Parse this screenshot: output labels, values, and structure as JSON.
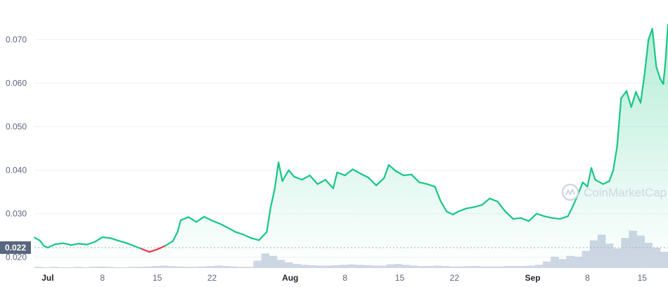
{
  "chart_data": {
    "type": "area",
    "source_watermark": "CoinMarketCap",
    "y_axis": {
      "ticks": [
        "0.020",
        "0.030",
        "0.040",
        "0.050",
        "0.060",
        "0.070"
      ],
      "tick_values": [
        0.02,
        0.03,
        0.04,
        0.05,
        0.06,
        0.07
      ],
      "ylim": [
        0.0175,
        0.0775
      ]
    },
    "x_axis": {
      "ticks": [
        {
          "label": "Jul",
          "day": 1,
          "bold": true
        },
        {
          "label": "8",
          "day": 8,
          "bold": false
        },
        {
          "label": "15",
          "day": 15,
          "bold": false
        },
        {
          "label": "22",
          "day": 22,
          "bold": false
        },
        {
          "label": "Aug",
          "day": 32,
          "bold": true
        },
        {
          "label": "8",
          "day": 39,
          "bold": false
        },
        {
          "label": "15",
          "day": 46,
          "bold": false
        },
        {
          "label": "22",
          "day": 53,
          "bold": false
        },
        {
          "label": "Sep",
          "day": 63,
          "bold": true
        },
        {
          "label": "8",
          "day": 70,
          "bold": false
        },
        {
          "label": "15",
          "day": 77,
          "bold": false
        }
      ],
      "xlim": [
        -0.7,
        80.3
      ]
    },
    "reference_line": {
      "value": 0.0222,
      "label": "0.022"
    },
    "price_series": {
      "name": "Price",
      "up_color": "#16c784",
      "down_color": "#ea3943",
      "points": [
        [
          -0.7,
          0.0245
        ],
        [
          0,
          0.0238
        ],
        [
          0.5,
          0.0226
        ],
        [
          1,
          0.0222
        ],
        [
          2,
          0.023
        ],
        [
          3,
          0.0232
        ],
        [
          4,
          0.0228
        ],
        [
          5,
          0.0231
        ],
        [
          6,
          0.0229
        ],
        [
          7,
          0.0235
        ],
        [
          8,
          0.0246
        ],
        [
          9,
          0.0244
        ],
        [
          10,
          0.0238
        ],
        [
          11,
          0.0233
        ],
        [
          12,
          0.0226
        ],
        [
          13,
          0.0219
        ],
        [
          14,
          0.0212
        ],
        [
          15,
          0.0218
        ],
        [
          16,
          0.0226
        ],
        [
          17,
          0.0237
        ],
        [
          17.6,
          0.0258
        ],
        [
          18,
          0.0285
        ],
        [
          19,
          0.0292
        ],
        [
          20,
          0.0281
        ],
        [
          21,
          0.0293
        ],
        [
          22,
          0.0284
        ],
        [
          23,
          0.0277
        ],
        [
          24,
          0.0268
        ],
        [
          25,
          0.0258
        ],
        [
          26,
          0.0252
        ],
        [
          27,
          0.0244
        ],
        [
          28,
          0.0239
        ],
        [
          29,
          0.0258
        ],
        [
          29.5,
          0.0315
        ],
        [
          30,
          0.0355
        ],
        [
          30.5,
          0.0418
        ],
        [
          31,
          0.0375
        ],
        [
          31.8,
          0.04
        ],
        [
          32.5,
          0.0385
        ],
        [
          33.5,
          0.0378
        ],
        [
          34.5,
          0.0388
        ],
        [
          35.5,
          0.0368
        ],
        [
          36.5,
          0.0378
        ],
        [
          37.5,
          0.0358
        ],
        [
          38,
          0.0395
        ],
        [
          39,
          0.0388
        ],
        [
          40,
          0.0402
        ],
        [
          41,
          0.0392
        ],
        [
          42,
          0.0383
        ],
        [
          43,
          0.0365
        ],
        [
          44,
          0.0382
        ],
        [
          44.6,
          0.0412
        ],
        [
          45.5,
          0.0398
        ],
        [
          46.5,
          0.0388
        ],
        [
          47.5,
          0.039
        ],
        [
          48.5,
          0.0372
        ],
        [
          49.5,
          0.0368
        ],
        [
          50.5,
          0.0362
        ],
        [
          51.2,
          0.033
        ],
        [
          52,
          0.0305
        ],
        [
          52.8,
          0.0298
        ],
        [
          53.5,
          0.0305
        ],
        [
          54.5,
          0.0312
        ],
        [
          55.5,
          0.0315
        ],
        [
          56.5,
          0.032
        ],
        [
          57.5,
          0.0335
        ],
        [
          58.5,
          0.0328
        ],
        [
          59.5,
          0.0305
        ],
        [
          60.5,
          0.0288
        ],
        [
          61.5,
          0.029
        ],
        [
          62.5,
          0.0283
        ],
        [
          63.5,
          0.03
        ],
        [
          64.5,
          0.0294
        ],
        [
          65.5,
          0.029
        ],
        [
          66.5,
          0.0288
        ],
        [
          67.5,
          0.0294
        ],
        [
          68,
          0.0312
        ],
        [
          68.7,
          0.034
        ],
        [
          69.4,
          0.0372
        ],
        [
          70,
          0.0362
        ],
        [
          70.5,
          0.0405
        ],
        [
          71,
          0.0378
        ],
        [
          72,
          0.0368
        ],
        [
          72.8,
          0.0375
        ],
        [
          73.3,
          0.04
        ],
        [
          73.8,
          0.0455
        ],
        [
          74.3,
          0.0565
        ],
        [
          75,
          0.0582
        ],
        [
          75.6,
          0.0545
        ],
        [
          76.2,
          0.058
        ],
        [
          76.8,
          0.0555
        ],
        [
          77.3,
          0.062
        ],
        [
          77.8,
          0.07
        ],
        [
          78.3,
          0.0725
        ],
        [
          78.8,
          0.0638
        ],
        [
          79.3,
          0.061
        ],
        [
          79.7,
          0.0598
        ],
        [
          80.0,
          0.0655
        ],
        [
          80.3,
          0.0735
        ]
      ]
    },
    "volume_series": {
      "name": "Volume",
      "color": "#cfd6e4",
      "relative_values": [
        0.03,
        0.02,
        0.03,
        0.02,
        0.02,
        0.03,
        0.02,
        0.03,
        0.04,
        0.03,
        0.02,
        0.02,
        0.03,
        0.03,
        0.04,
        0.05,
        0.06,
        0.05,
        0.04,
        0.03,
        0.03,
        0.04,
        0.05,
        0.06,
        0.05,
        0.04,
        0.03,
        0.03,
        0.18,
        0.36,
        0.3,
        0.2,
        0.14,
        0.1,
        0.08,
        0.07,
        0.06,
        0.06,
        0.07,
        0.08,
        0.09,
        0.08,
        0.07,
        0.06,
        0.06,
        0.09,
        0.1,
        0.08,
        0.06,
        0.05,
        0.05,
        0.06,
        0.05,
        0.04,
        0.04,
        0.05,
        0.05,
        0.04,
        0.04,
        0.04,
        0.05,
        0.05,
        0.05,
        0.06,
        0.08,
        0.16,
        0.28,
        0.22,
        0.3,
        0.28,
        0.42,
        0.68,
        0.82,
        0.6,
        0.48,
        0.74,
        0.92,
        0.8,
        0.62,
        0.5,
        0.4
      ]
    }
  }
}
